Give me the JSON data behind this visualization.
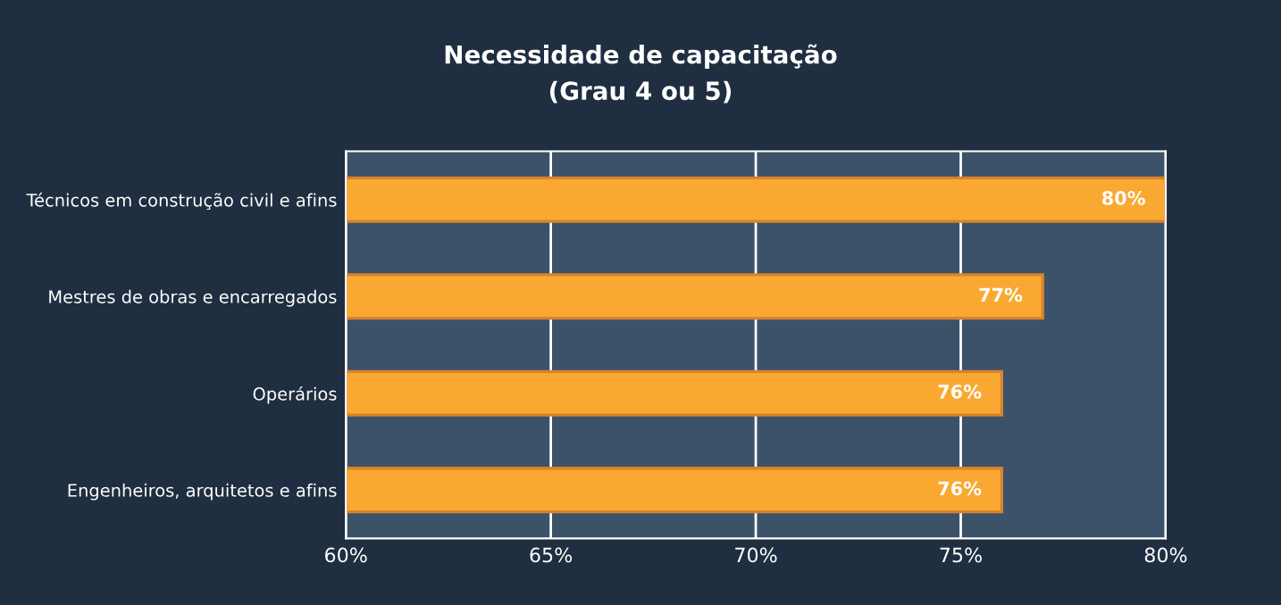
{
  "chart_data": {
    "type": "bar",
    "orientation": "horizontal",
    "title": "Necessidade de capacitação",
    "subtitle": "(Grau 4 ou 5)",
    "categories": [
      "Técnicos em construção civil e afins",
      "Mestres de obras e encarregados",
      "Operários",
      "Engenheiros, arquitetos e afins"
    ],
    "values": [
      80,
      77,
      76,
      76
    ],
    "color": "#f9a932",
    "value_labels": [
      "80%",
      "77%",
      "76%",
      "76%"
    ],
    "xlim": [
      60,
      80
    ],
    "xticks": [
      {
        "value": 60,
        "label": "60%"
      },
      {
        "value": 65,
        "label": "65%"
      },
      {
        "value": 70,
        "label": "70%"
      },
      {
        "value": 75,
        "label": "75%"
      },
      {
        "value": 80,
        "label": "80%"
      }
    ],
    "grid": "x"
  }
}
